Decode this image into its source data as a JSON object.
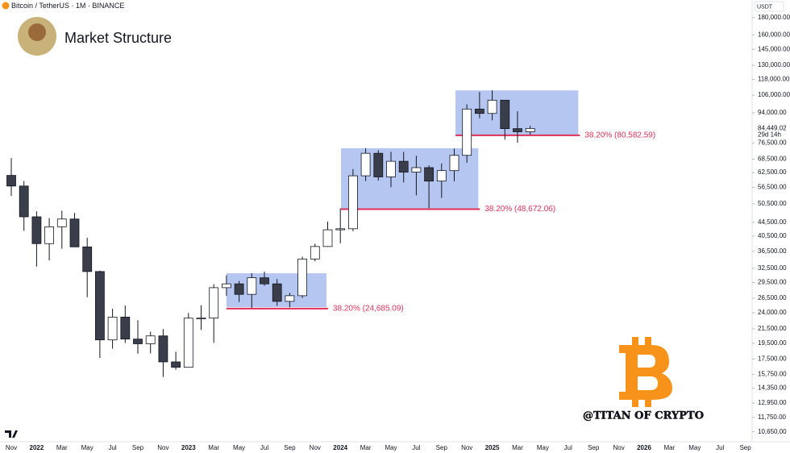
{
  "header": {
    "symbol": "Bitcoin / TetherUS · 1M · BINANCE",
    "currency": "USDT"
  },
  "chart_data": {
    "type": "candlestick",
    "title": "Market Structure",
    "watermark": "@TITAN OF CRYPTO",
    "log_scale": true,
    "grid": false,
    "up_color": "#ffffff",
    "down_color": "#3a3e4a",
    "wick_color": "#131722",
    "zone_color": "#8ea8ea",
    "level_color": "#e0315a",
    "categories": [
      "Nov",
      null,
      "2022",
      null,
      "Mar",
      null,
      "May",
      null,
      "Jul",
      null,
      "Sep",
      null,
      "Nov",
      null,
      "2023",
      null,
      "Mar",
      null,
      "May",
      null,
      "Jul",
      null,
      "Sep",
      null,
      "Nov",
      null,
      "2024",
      null,
      "Mar",
      null,
      "May",
      null,
      "Jul",
      null,
      "Sep",
      null,
      "Nov",
      null,
      "2025",
      null,
      "Mar",
      null,
      "May",
      null,
      "Jul",
      null,
      "Sep",
      null,
      "Nov",
      null,
      "2026",
      null,
      "Mar",
      null,
      "May",
      null,
      "Jul",
      null,
      "Sep"
    ],
    "open": [
      61300,
      57000,
      46200,
      38470,
      43160,
      45510,
      37630,
      31800,
      19940,
      23300,
      20050,
      19420,
      20490,
      17160,
      16540,
      23130,
      23140,
      28480,
      29230,
      27210,
      30470,
      29230,
      25940,
      26960,
      34640,
      37720,
      42280,
      42580,
      61130,
      71280,
      60670,
      67490,
      62680,
      64630,
      58970,
      63330,
      70290,
      96410,
      93580,
      102430,
      84350,
      82550,
      null,
      null,
      null,
      null,
      null,
      null,
      null,
      null,
      null,
      null,
      null,
      null,
      null,
      null,
      null,
      null,
      null
    ],
    "high": [
      69000,
      59000,
      47990,
      45800,
      48190,
      47450,
      40020,
      31990,
      24670,
      25210,
      22800,
      21090,
      21480,
      18390,
      23960,
      25250,
      29180,
      31000,
      29820,
      31430,
      31800,
      30200,
      27490,
      35200,
      38450,
      44700,
      48970,
      64000,
      73780,
      72800,
      71980,
      71950,
      70080,
      65660,
      66500,
      73620,
      99590,
      108350,
      109590,
      102500,
      95000,
      86000,
      null,
      null,
      null,
      null,
      null,
      null,
      null,
      null,
      null,
      null,
      null,
      null,
      null,
      null,
      null,
      null,
      null
    ],
    "low": [
      53250,
      42000,
      32900,
      34300,
      37150,
      37700,
      26700,
      17620,
      18780,
      19520,
      18150,
      18190,
      15480,
      16260,
      16500,
      21350,
      19550,
      26940,
      25810,
      24800,
      28860,
      25170,
      24900,
      26540,
      34100,
      37620,
      38550,
      41880,
      59000,
      59190,
      56550,
      58400,
      53490,
      49000,
      52550,
      58870,
      66830,
      90500,
      89260,
      78260,
      76600,
      81000,
      null,
      null,
      null,
      null,
      null,
      null,
      null,
      null,
      null,
      null,
      null,
      null,
      null,
      null,
      null,
      null,
      null
    ],
    "close": [
      57000,
      46200,
      38470,
      43160,
      45510,
      37630,
      31800,
      19940,
      23300,
      20050,
      19420,
      20490,
      17160,
      16540,
      23130,
      23140,
      28480,
      29230,
      27210,
      30470,
      29230,
      25940,
      26960,
      34640,
      37720,
      42280,
      42580,
      61130,
      71280,
      60670,
      67490,
      62680,
      64630,
      58970,
      63330,
      70290,
      96410,
      93580,
      102430,
      84350,
      82550,
      84449.02,
      null,
      null,
      null,
      null,
      null,
      null,
      null,
      null,
      null,
      null,
      null,
      null,
      null,
      null,
      null,
      null,
      null
    ],
    "ylim": [
      9950,
      203000
    ],
    "yticks": [
      {
        "value": 180000,
        "label": "180,000.00"
      },
      {
        "value": 160000,
        "label": "160,000.00"
      },
      {
        "value": 145000,
        "label": "145,000.00"
      },
      {
        "value": 130000,
        "label": "130,000.00"
      },
      {
        "value": 118000,
        "label": "118,000.00"
      },
      {
        "value": 106000,
        "label": "106,000.00"
      },
      {
        "value": 94000,
        "label": "94,000.00"
      },
      {
        "value": 76500,
        "label": "76,500.00"
      },
      {
        "value": 68500,
        "label": "68,500.00"
      },
      {
        "value": 62500,
        "label": "62,500.00"
      },
      {
        "value": 56500,
        "label": "56,500.00"
      },
      {
        "value": 50500,
        "label": "50,500.00"
      },
      {
        "value": 44500,
        "label": "44,500.00"
      },
      {
        "value": 40500,
        "label": "40,500.00"
      },
      {
        "value": 36500,
        "label": "36,500.00"
      },
      {
        "value": 32500,
        "label": "32,500.00"
      },
      {
        "value": 29500,
        "label": "29,500.00"
      },
      {
        "value": 26500,
        "label": "26,500.00"
      },
      {
        "value": 24000,
        "label": "24,000.00"
      },
      {
        "value": 21500,
        "label": "21,500.00"
      },
      {
        "value": 19500,
        "label": "19,500.00"
      },
      {
        "value": 17500,
        "label": "17,500.00"
      },
      {
        "value": 15750,
        "label": "15,750.00"
      },
      {
        "value": 14350,
        "label": "14,350.00"
      },
      {
        "value": 12950,
        "label": "12,950.00"
      },
      {
        "value": 11750,
        "label": "11,750.00"
      },
      {
        "value": 10650,
        "label": "10,650.00"
      }
    ],
    "last_price": {
      "value": 84449.02,
      "label": "84,449.02",
      "countdown": "29d 14h"
    },
    "zones": [
      {
        "x": [
          17,
          24.9
        ],
        "ylim": [
          24930,
          31420
        ],
        "level": 24685.09,
        "label": "38.20% (24,685.09)"
      },
      {
        "x": [
          26.05,
          36.9
        ],
        "ylim": [
          48700,
          73800
        ],
        "level": 48672.06,
        "label": "38.20% (48,672.06)"
      },
      {
        "x": [
          35.1,
          44.8
        ],
        "ylim": [
          80600,
          109500
        ],
        "level": 80582.59,
        "label": "38.20% (80,582.59)"
      }
    ]
  }
}
